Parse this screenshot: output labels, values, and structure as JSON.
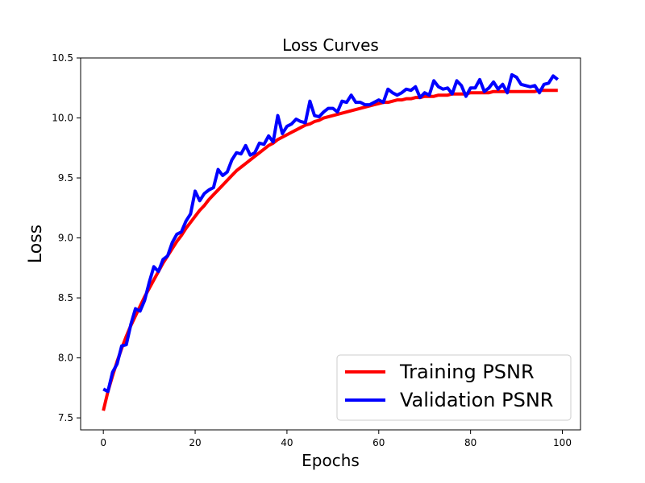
{
  "chart_data": {
    "type": "line",
    "title": "Loss Curves",
    "xlabel": "Epochs",
    "ylabel": "Loss",
    "xlim": [
      -4.95,
      103.95
    ],
    "ylim": [
      7.4,
      10.5
    ],
    "xticks": [
      0,
      20,
      40,
      60,
      80,
      100
    ],
    "yticks": [
      7.5,
      8.0,
      8.5,
      9.0,
      9.5,
      10.0,
      10.5
    ],
    "ytick_labels": [
      "7.5",
      "8.0",
      "8.5",
      "9.0",
      "9.5",
      "10.0",
      "10.5"
    ],
    "grid": false,
    "legend_position": "lower-right",
    "series": [
      {
        "name": "Training PSNR",
        "color": "#ff0000",
        "values": [
          7.56,
          7.72,
          7.85,
          7.97,
          8.08,
          8.18,
          8.27,
          8.35,
          8.43,
          8.51,
          8.58,
          8.65,
          8.72,
          8.79,
          8.85,
          8.91,
          8.97,
          9.02,
          9.08,
          9.13,
          9.18,
          9.23,
          9.27,
          9.32,
          9.36,
          9.4,
          9.44,
          9.48,
          9.52,
          9.56,
          9.59,
          9.62,
          9.65,
          9.68,
          9.71,
          9.74,
          9.77,
          9.79,
          9.82,
          9.84,
          9.86,
          9.88,
          9.9,
          9.92,
          9.94,
          9.95,
          9.97,
          9.98,
          10.0,
          10.01,
          10.02,
          10.03,
          10.04,
          10.05,
          10.06,
          10.07,
          10.08,
          10.09,
          10.1,
          10.11,
          10.12,
          10.13,
          10.13,
          10.14,
          10.15,
          10.15,
          10.16,
          10.16,
          10.17,
          10.17,
          10.18,
          10.18,
          10.18,
          10.19,
          10.19,
          10.19,
          10.2,
          10.2,
          10.2,
          10.2,
          10.21,
          10.21,
          10.21,
          10.21,
          10.21,
          10.22,
          10.22,
          10.22,
          10.22,
          10.22,
          10.22,
          10.22,
          10.22,
          10.22,
          10.22,
          10.23,
          10.23,
          10.23,
          10.23,
          10.23
        ]
      },
      {
        "name": "Validation PSNR",
        "color": "#0000ff",
        "values": [
          7.74,
          7.72,
          7.88,
          7.95,
          8.1,
          8.11,
          8.28,
          8.41,
          8.39,
          8.48,
          8.63,
          8.76,
          8.72,
          8.82,
          8.85,
          8.96,
          9.03,
          9.05,
          9.14,
          9.2,
          9.39,
          9.31,
          9.37,
          9.4,
          9.42,
          9.57,
          9.52,
          9.55,
          9.65,
          9.71,
          9.7,
          9.77,
          9.69,
          9.71,
          9.79,
          9.78,
          9.85,
          9.8,
          10.02,
          9.87,
          9.93,
          9.95,
          9.99,
          9.97,
          9.96,
          10.14,
          10.02,
          10.01,
          10.05,
          10.08,
          10.08,
          10.05,
          10.14,
          10.13,
          10.19,
          10.13,
          10.13,
          10.11,
          10.11,
          10.13,
          10.15,
          10.13,
          10.24,
          10.21,
          10.19,
          10.21,
          10.24,
          10.23,
          10.26,
          10.17,
          10.21,
          10.19,
          10.31,
          10.26,
          10.24,
          10.25,
          10.2,
          10.31,
          10.27,
          10.18,
          10.25,
          10.25,
          10.32,
          10.22,
          10.25,
          10.3,
          10.24,
          10.28,
          10.21,
          10.36,
          10.34,
          10.28,
          10.27,
          10.26,
          10.27,
          10.21,
          10.28,
          10.29,
          10.35,
          10.32
        ]
      }
    ]
  }
}
